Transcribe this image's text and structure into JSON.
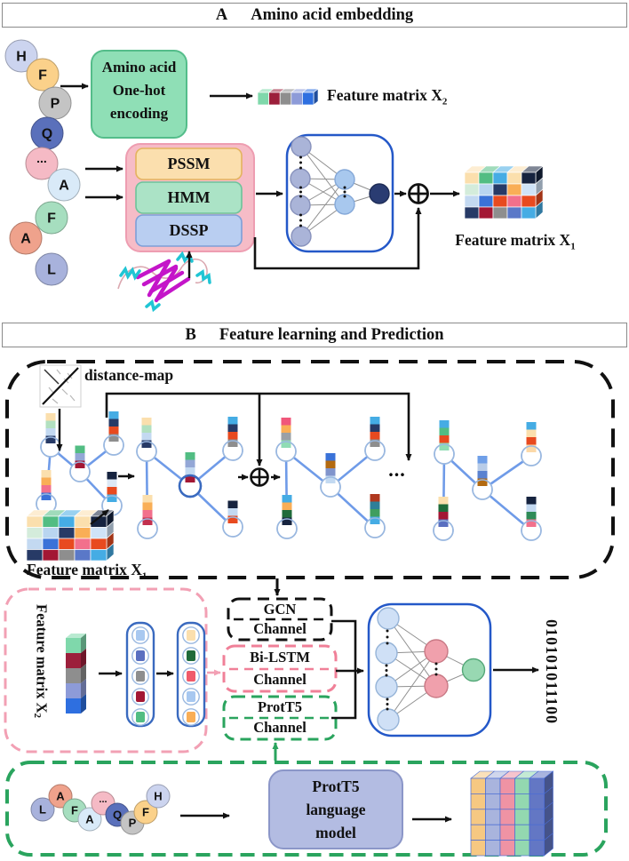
{
  "colors": {
    "banner_a_bg": "#f2a0ab",
    "banner_b_bg": "#a9b5da",
    "banner_border": "#8a8a8a",
    "one_hot_bg": "#8fdfb6",
    "one_hot_border": "#54bd8a",
    "container_bg": "#f6bcc7",
    "container_border": "#ee9db1",
    "pssm_bg": "#fbdfae",
    "pssm_border": "#e4b35e",
    "hmm_bg": "#abe3c6",
    "hmm_border": "#6cc39a",
    "dssp_bg": "#b9cef1",
    "dssp_border": "#7d9fd8",
    "nn_box_border": "#2458c8",
    "nn_input_fill": "#aab4d8",
    "nn_hidden_fill": "#a8c8ee",
    "nn_output_fill": "#2a3c72",
    "nn2_input_fill": "#cfe0f6",
    "nn2_hidden_fill": "#f0a0ac",
    "nn2_output_fill": "#98d8b2",
    "graph_edge": "#6f9be8",
    "node_ring": "#9ab8e0",
    "node_ring_highlight": "#3a6abf",
    "black_dash": "#111111",
    "pink_dash": "#f2a0b4",
    "green_dash": "#2aa45e",
    "prott5_model_bg": "#b3bce2",
    "prott5_model_border": "#8b96c8",
    "matrix_grid_line": "#4a6cd4"
  },
  "panel_a": {
    "label": "A",
    "title": "Amino acid embedding",
    "chain": [
      "H",
      "F",
      "P",
      "Q",
      "...",
      "A",
      "F",
      "A",
      "L"
    ],
    "chain_colors": [
      "#ccd4ef",
      "#fbd18a",
      "#c4c4c4",
      "#5a70bb",
      "#f5bac5",
      "#d9eaf8",
      "#a6debf",
      "#efa28c",
      "#a8b2dc"
    ],
    "one_hot_box": [
      "Amino acid",
      "One-hot",
      "encoding"
    ],
    "feature_boxes": [
      "PSSM",
      "HMM",
      "DSSP"
    ],
    "x2_label": {
      "text": "Feature matrix X",
      "sub": "2"
    },
    "x1_label": {
      "text": "Feature matrix X",
      "sub": "1"
    },
    "x2_bar": [
      "#7fd8ab",
      "#9c1f3b",
      "#8e8e8e",
      "#8d9bd8",
      "#2e6fe0"
    ],
    "x1_matrix": [
      [
        "#fbdfad",
        "#52bd83",
        "#45ace4",
        "#fbdfad",
        "#16233f"
      ],
      [
        "#d4ecdb",
        "#b9d5f0",
        "#273a66",
        "#f9ae56",
        "#cfe3f7"
      ],
      [
        "#c3d9f1",
        "#3a72d8",
        "#e84a1f",
        "#f2708c",
        "#e84a1f"
      ],
      [
        "#273a66",
        "#a31734",
        "#8e8e8e",
        "#5a78c8",
        "#45ace4"
      ]
    ]
  },
  "panel_b": {
    "label": "B",
    "title": "Feature learning and  Prediction",
    "distance_map_label": "distance-map",
    "x1_label": {
      "text": "Feature matrix X",
      "sub": "1"
    },
    "x2_label": {
      "text": "Feature matrix X",
      "sub": "2"
    },
    "ellipsis": "...",
    "graphs": [
      [
        [
          "#fbdfad",
          "#b2e0c0",
          "#c3d9f1",
          "#273a66"
        ],
        [
          "#fbdfad",
          "#f9ae56",
          "#f2708c",
          "#3a72d8"
        ],
        [
          "#52bd83",
          "#93a7d6",
          "#a31734"
        ],
        [
          "#45ace4",
          "#273a66",
          "#e84a1f",
          "#8e8e8e"
        ],
        [
          "#16233f",
          "#dce8f5",
          "#e84a1f",
          "#45ace4"
        ]
      ],
      [
        [
          "#fbdfad",
          "#b2e0c0",
          "#c3d9f1",
          "#273a66"
        ],
        [
          "#fbdfad",
          "#f9ae56",
          "#f2708c",
          "#c2304e"
        ],
        [
          "#52bd83",
          "#93a7d6",
          "#c3d9f1",
          "#a31734"
        ],
        [
          "#45ace4",
          "#273a66",
          "#e84a1f",
          "#8e8e8e"
        ],
        [
          "#16233f",
          "#c3d9f1",
          "#e84a1f"
        ]
      ],
      [
        [
          "#f0577a",
          "#f9ae56",
          "#9aa0a6",
          "#8fdcb4"
        ],
        [
          "#45ace4",
          "#f9ae56",
          "#1f6b3a",
          "#16233f"
        ],
        [
          "#3a72d8",
          "#b36a10",
          "#8094cc",
          "#c3d9f1"
        ],
        [
          "#45ace4",
          "#273a66",
          "#e84a1f",
          "#8e8e8e"
        ],
        [
          "#b0391f",
          "#2e7f99",
          "#3f9e5f",
          "#45ace4"
        ]
      ],
      [
        [
          "#45ace4",
          "#52bd83",
          "#e84a1f",
          "#8fdcb4"
        ],
        [
          "#fbdfad",
          "#1f6b3a",
          "#a31734",
          "#5a6fc0"
        ],
        [
          "#6f9fe8",
          "#b8cce8",
          "#5a82d0",
          "#b36a10"
        ],
        [
          "#45ace4",
          "#fbdfad",
          "#e84a1f",
          "#fcd9a8"
        ],
        [
          "#16233f",
          "#c3d9f1",
          "#2e8b57",
          "#f2708c"
        ]
      ]
    ],
    "vector1": [
      "#a8c8f0",
      "#5a6fc0",
      "#8e8e8e",
      "#a31734",
      "#52bd83"
    ],
    "vector2": [
      "#fbdfad",
      "#1f6b3a",
      "#f05a6a",
      "#a8c8f0",
      "#f9ae56"
    ],
    "channels": [
      [
        "GCN",
        "Channel"
      ],
      [
        "Bi-LSTM",
        "Channel"
      ],
      [
        "ProtT5",
        "Channel"
      ]
    ],
    "output_binary": "010101011100",
    "bottom_chain": [
      "L",
      "A",
      "F",
      "A",
      "...",
      "Q",
      "P",
      "F",
      "H"
    ],
    "bottom_chain_colors": [
      "#a8b2dc",
      "#efa28c",
      "#a6debf",
      "#d9eaf8",
      "#f5bac5",
      "#5a70bb",
      "#c4c4c4",
      "#fbd18a",
      "#ccd4ef"
    ],
    "prott5_model": [
      "ProtT5",
      "language",
      "model"
    ],
    "prott5_matrix_columns": [
      "#f6c882",
      "#a9b4dd",
      "#ef93a4",
      "#93d8b0",
      "#6377c4"
    ]
  }
}
